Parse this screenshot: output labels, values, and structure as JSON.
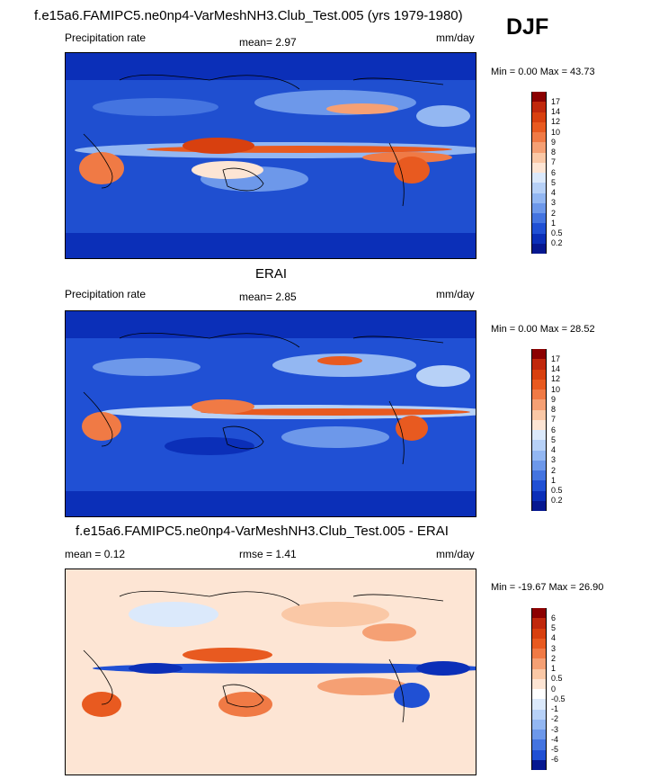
{
  "season": "DJF",
  "panels": [
    {
      "title": "f.e15a6.FAMIPC5.ne0np4-VarMeshNH3.Club_Test.005 (yrs 1979-1980)",
      "left_label": "Precipitation rate",
      "center_label": "mean=  2.97",
      "units": "mm/day",
      "minmax": "Min =   0.00 Max =  43.73",
      "colorbar_labels": [
        "17",
        "14",
        "12",
        "10",
        "9",
        "8",
        "7",
        "6",
        "5",
        "4",
        "3",
        "2",
        "1",
        "0.5",
        "0.2"
      ],
      "colorbar_colors": [
        "#8b0000",
        "#c0280c",
        "#d8400f",
        "#e85a20",
        "#f07a45",
        "#f5a074",
        "#fac8a6",
        "#fde5d4",
        "#dbe9fb",
        "#b7d1f7",
        "#93b7f2",
        "#6d98ea",
        "#4474e0",
        "#2050d4",
        "#0b2fb8",
        "#061890"
      ]
    },
    {
      "title": "ERAI",
      "left_label": "Precipitation rate",
      "center_label": "mean=  2.85",
      "units": "mm/day",
      "minmax": "Min =   0.00 Max =  28.52",
      "colorbar_labels": [
        "17",
        "14",
        "12",
        "10",
        "9",
        "8",
        "7",
        "6",
        "5",
        "4",
        "3",
        "2",
        "1",
        "0.5",
        "0.2"
      ],
      "colorbar_colors": [
        "#8b0000",
        "#c0280c",
        "#d8400f",
        "#e85a20",
        "#f07a45",
        "#f5a074",
        "#fac8a6",
        "#fde5d4",
        "#dbe9fb",
        "#b7d1f7",
        "#93b7f2",
        "#6d98ea",
        "#4474e0",
        "#2050d4",
        "#0b2fb8",
        "#061890"
      ]
    },
    {
      "title": "f.e15a6.FAMIPC5.ne0np4-VarMeshNH3.Club_Test.005 - ERAI",
      "left_label": "mean =  0.12",
      "center_label": "rmse =  1.41",
      "units": "mm/day",
      "minmax": "Min = -19.67 Max =  26.90",
      "colorbar_labels": [
        "6",
        "5",
        "4",
        "3",
        "2",
        "1",
        "0.5",
        "0",
        "-0.5",
        "-1",
        "-2",
        "-3",
        "-4",
        "-5",
        "-6"
      ],
      "colorbar_colors": [
        "#8b0000",
        "#c0280c",
        "#d8400f",
        "#e85a20",
        "#f07a45",
        "#f5a074",
        "#fac8a6",
        "#fde5d4",
        "#ffffff",
        "#dbe9fb",
        "#b7d1f7",
        "#93b7f2",
        "#6d98ea",
        "#4474e0",
        "#2050d4",
        "#061890"
      ]
    }
  ]
}
